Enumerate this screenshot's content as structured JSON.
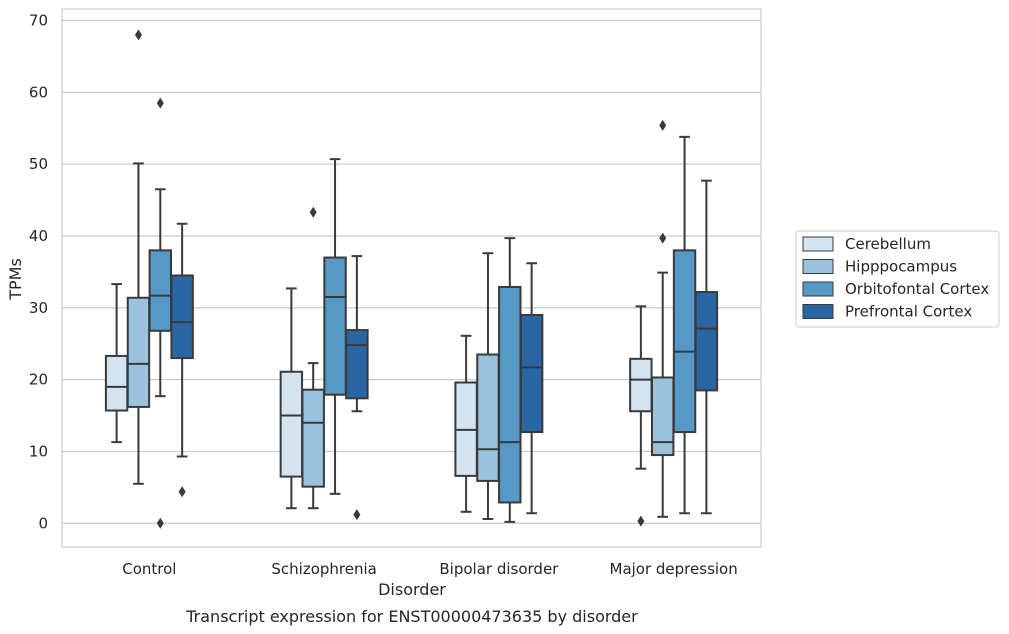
{
  "chart_data": {
    "type": "box",
    "caption": "Transcript expression for ENST00000473635 by disorder",
    "xlabel": "Disorder",
    "ylabel": "TPMs",
    "ylim": [
      -3.3,
      71.6
    ],
    "yticks": [
      0,
      10,
      20,
      30,
      40,
      50,
      60,
      70
    ],
    "grid": true,
    "legend_position": "right",
    "categories": [
      "Control",
      "Schizophrenia",
      "Bipolar disorder",
      "Major depression"
    ],
    "series": [
      {
        "name": "Cerebellum",
        "color": "#d3e3f2",
        "boxes": [
          {
            "whisker_low": 11.3,
            "q1": 15.7,
            "median": 19.0,
            "q3": 23.3,
            "whisker_high": 33.3,
            "outliers": []
          },
          {
            "whisker_low": 2.1,
            "q1": 6.5,
            "median": 15.0,
            "q3": 21.1,
            "whisker_high": 32.7,
            "outliers": []
          },
          {
            "whisker_low": 1.6,
            "q1": 6.6,
            "median": 13.0,
            "q3": 19.6,
            "whisker_high": 26.1,
            "outliers": []
          },
          {
            "whisker_low": 7.6,
            "q1": 15.6,
            "median": 20.0,
            "q3": 22.9,
            "whisker_high": 30.2,
            "outliers": [
              0.3
            ]
          }
        ]
      },
      {
        "name": "Hipppocampus",
        "color": "#9ac2dd",
        "boxes": [
          {
            "whisker_low": 5.5,
            "q1": 16.2,
            "median": 22.2,
            "q3": 31.4,
            "whisker_high": 50.1,
            "outliers": [
              68.0
            ]
          },
          {
            "whisker_low": 2.1,
            "q1": 5.1,
            "median": 14.0,
            "q3": 18.6,
            "whisker_high": 22.3,
            "outliers": [
              43.3
            ]
          },
          {
            "whisker_low": 0.6,
            "q1": 5.9,
            "median": 10.3,
            "q3": 23.5,
            "whisker_high": 37.6,
            "outliers": []
          },
          {
            "whisker_low": 0.9,
            "q1": 9.5,
            "median": 11.3,
            "q3": 20.3,
            "whisker_high": 34.9,
            "outliers": [
              39.7,
              55.4
            ]
          }
        ]
      },
      {
        "name": "Orbitofontal Cortex",
        "color": "#5698c6",
        "boxes": [
          {
            "whisker_low": 17.7,
            "q1": 26.8,
            "median": 31.7,
            "q3": 38.0,
            "whisker_high": 46.5,
            "outliers": [
              58.5,
              0.0
            ]
          },
          {
            "whisker_low": 4.1,
            "q1": 17.9,
            "median": 31.5,
            "q3": 37.0,
            "whisker_high": 50.7,
            "outliers": []
          },
          {
            "whisker_low": 0.2,
            "q1": 2.9,
            "median": 11.3,
            "q3": 32.9,
            "whisker_high": 39.7,
            "outliers": []
          },
          {
            "whisker_low": 1.4,
            "q1": 12.7,
            "median": 23.9,
            "q3": 38.0,
            "whisker_high": 53.8,
            "outliers": []
          }
        ]
      },
      {
        "name": "Prefrontal Cortex",
        "color": "#2a66a4",
        "boxes": [
          {
            "whisker_low": 9.3,
            "q1": 23.0,
            "median": 28.0,
            "q3": 34.5,
            "whisker_high": 41.7,
            "outliers": [
              4.4
            ]
          },
          {
            "whisker_low": 15.6,
            "q1": 17.4,
            "median": 24.8,
            "q3": 26.9,
            "whisker_high": 37.2,
            "outliers": [
              1.2
            ]
          },
          {
            "whisker_low": 1.4,
            "q1": 12.7,
            "median": 21.7,
            "q3": 29.0,
            "whisker_high": 36.2,
            "outliers": []
          },
          {
            "whisker_low": 1.4,
            "q1": 18.5,
            "median": 27.1,
            "q3": 32.2,
            "whisker_high": 47.7,
            "outliers": []
          }
        ]
      }
    ]
  }
}
